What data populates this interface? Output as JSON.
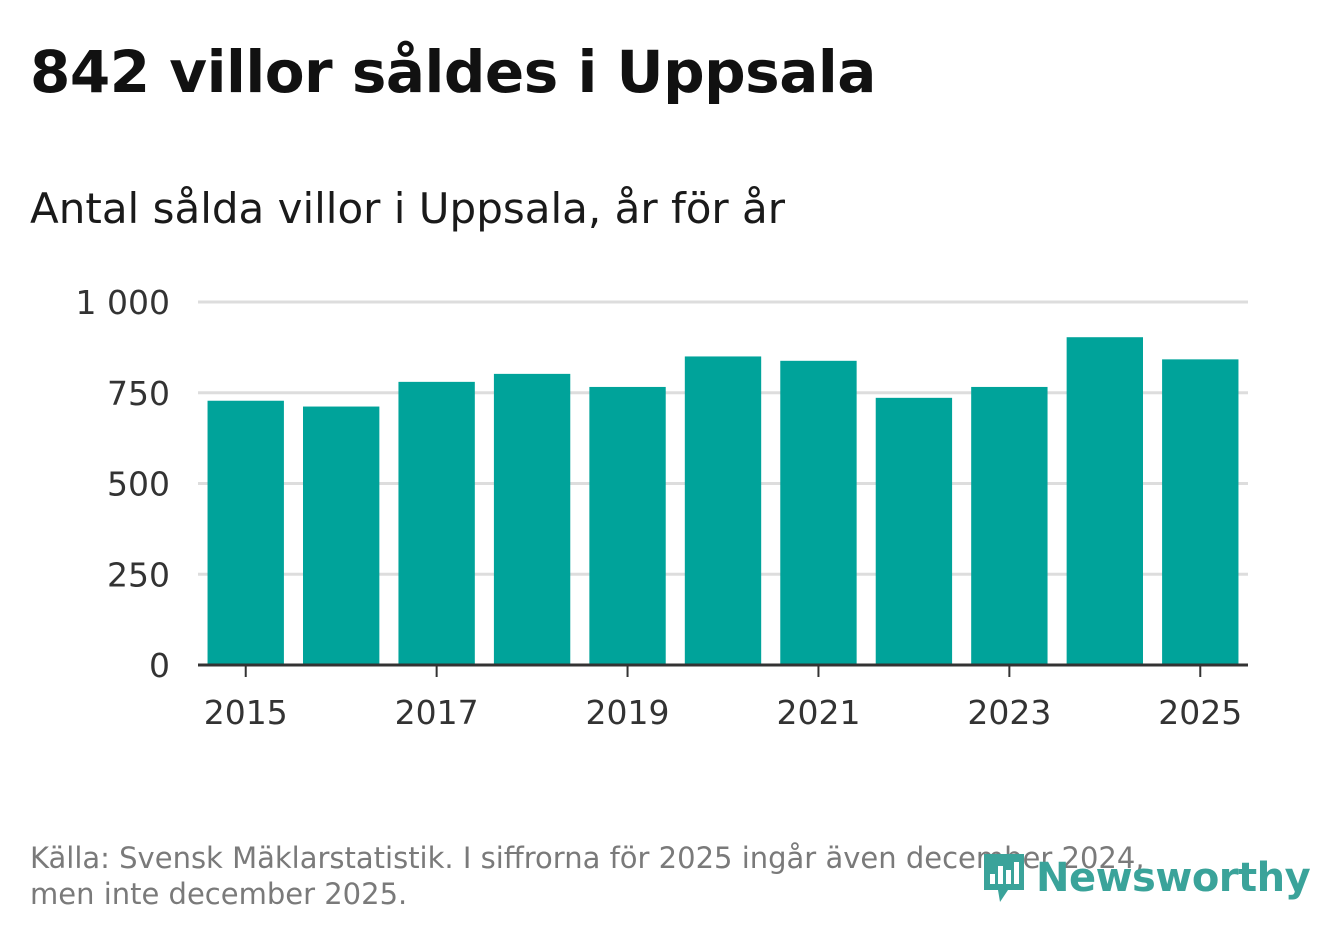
{
  "header": {
    "title": "842 villor såldes i Uppsala",
    "subtitle": "Antal sålda villor i Uppsala, år för år"
  },
  "footer": {
    "source_line1": "Källa: Svensk Mäklarstatistik. I siffrorna för 2025 ingår även december 2024,",
    "source_line2": "men inte december 2025.",
    "brand": "Newsworthy"
  },
  "colors": {
    "bar": "#00a39a",
    "grid": "#dddddd",
    "axis": "#333333",
    "brand": "#3aa39a"
  },
  "chart_data": {
    "type": "bar",
    "title": "Antal sålda villor i Uppsala, år för år",
    "xlabel": "",
    "ylabel": "",
    "categories": [
      "2015",
      "2016",
      "2017",
      "2018",
      "2019",
      "2020",
      "2021",
      "2022",
      "2023",
      "2024",
      "2025"
    ],
    "values": [
      728,
      712,
      780,
      802,
      766,
      850,
      838,
      736,
      766,
      903,
      842
    ],
    "ylim": [
      0,
      1000
    ],
    "yticks": [
      0,
      250,
      500,
      750,
      1000
    ],
    "ytick_labels": [
      "0",
      "250",
      "500",
      "750",
      "1 000"
    ],
    "xtick_labels": [
      "2015",
      "2017",
      "2019",
      "2021",
      "2023",
      "2025"
    ],
    "grid": true,
    "legend": "none"
  }
}
